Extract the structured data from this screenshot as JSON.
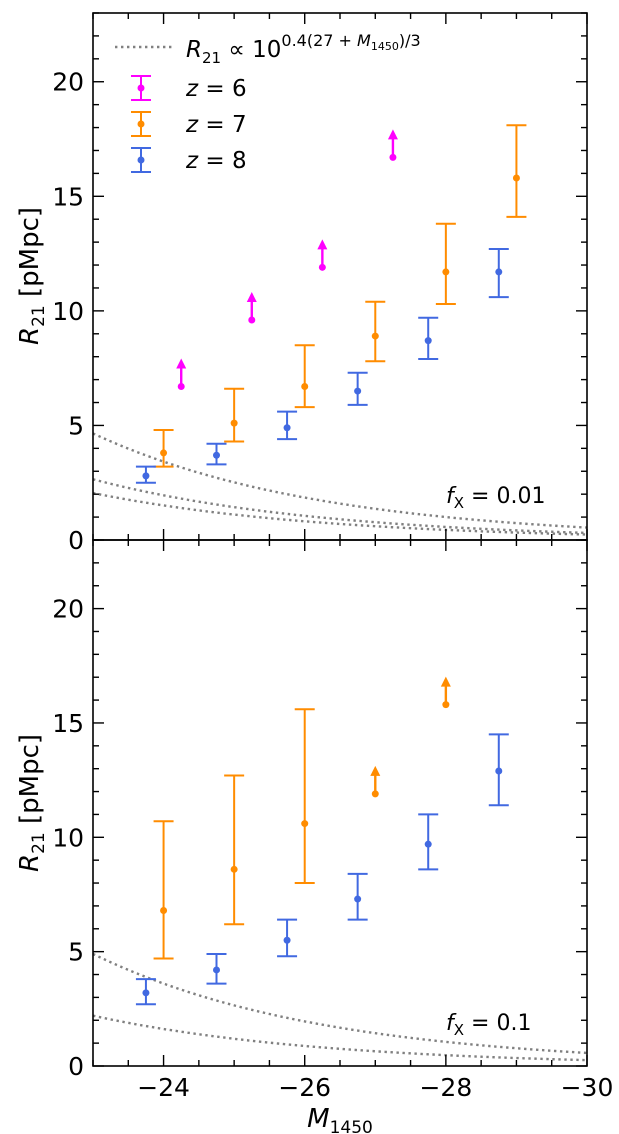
{
  "chart_data": [
    {
      "type": "scatter",
      "panel": "top",
      "xlabel": "",
      "ylabel": "R21 [pMpc]",
      "xlim": [
        -23,
        -30
      ],
      "ylim": [
        0,
        23
      ],
      "x_ticks": [
        -24,
        -26,
        -28,
        -30
      ],
      "y_ticks": [
        0,
        5,
        10,
        15,
        20
      ],
      "annotation": "f_X = 0.01",
      "legend": {
        "placement": "top-left",
        "curve_label": "R21 ∝ 10^{0.4(27 + M1450)/3}",
        "entries": [
          "z = 6",
          "z = 7",
          "z = 8"
        ]
      },
      "series": [
        {
          "name": "z = 6",
          "color": "#ff00ff",
          "marker": "lower-limit",
          "points": [
            {
              "x": -24.25,
              "y": 6.7
            },
            {
              "x": -25.25,
              "y": 9.6
            },
            {
              "x": -26.25,
              "y": 11.9
            },
            {
              "x": -27.25,
              "y": 16.7
            }
          ]
        },
        {
          "name": "z = 7",
          "color": "#ff8c00",
          "marker": "errorbar",
          "points": [
            {
              "x": -24.0,
              "y": 3.8,
              "ylo": 3.2,
              "yhi": 4.8
            },
            {
              "x": -25.0,
              "y": 5.1,
              "ylo": 4.3,
              "yhi": 6.6
            },
            {
              "x": -26.0,
              "y": 6.7,
              "ylo": 5.8,
              "yhi": 8.5
            },
            {
              "x": -27.0,
              "y": 8.9,
              "ylo": 7.8,
              "yhi": 10.4
            },
            {
              "x": -28.0,
              "y": 11.7,
              "ylo": 10.3,
              "yhi": 13.8
            },
            {
              "x": -29.0,
              "y": 15.8,
              "ylo": 14.1,
              "yhi": 18.1
            }
          ]
        },
        {
          "name": "z = 8",
          "color": "#4169e1",
          "marker": "errorbar",
          "points": [
            {
              "x": -23.75,
              "y": 2.8,
              "ylo": 2.5,
              "yhi": 3.2
            },
            {
              "x": -24.75,
              "y": 3.7,
              "ylo": 3.3,
              "yhi": 4.2
            },
            {
              "x": -25.75,
              "y": 4.9,
              "ylo": 4.4,
              "yhi": 5.6
            },
            {
              "x": -26.75,
              "y": 6.5,
              "ylo": 5.9,
              "yhi": 7.3
            },
            {
              "x": -27.75,
              "y": 8.7,
              "ylo": 7.9,
              "yhi": 9.7
            },
            {
              "x": -28.75,
              "y": 11.7,
              "ylo": 10.6,
              "yhi": 12.7
            }
          ]
        }
      ],
      "curves": [
        {
          "anchor_x": -23,
          "anchor_y": 4.65
        },
        {
          "anchor_x": -23,
          "anchor_y": 2.65
        },
        {
          "anchor_x": -23,
          "anchor_y": 2.05
        }
      ]
    },
    {
      "type": "scatter",
      "panel": "bottom",
      "xlabel": "M1450",
      "ylabel": "R21 [pMpc]",
      "xlim": [
        -23,
        -30
      ],
      "ylim": [
        0,
        23
      ],
      "x_ticks": [
        -24,
        -26,
        -28,
        -30
      ],
      "y_ticks": [
        0,
        5,
        10,
        15,
        20
      ],
      "annotation": "f_X = 0.1",
      "series": [
        {
          "name": "z = 7",
          "color": "#ff8c00",
          "marker": "errorbar",
          "points": [
            {
              "x": -24.0,
              "y": 6.8,
              "ylo": 4.7,
              "yhi": 10.7
            },
            {
              "x": -25.0,
              "y": 8.6,
              "ylo": 6.2,
              "yhi": 12.7
            },
            {
              "x": -26.0,
              "y": 10.6,
              "ylo": 8.0,
              "yhi": 15.6
            }
          ]
        },
        {
          "name": "z = 7",
          "color": "#ff8c00",
          "marker": "lower-limit",
          "points": [
            {
              "x": -27.0,
              "y": 11.9
            },
            {
              "x": -28.0,
              "y": 15.8
            }
          ]
        },
        {
          "name": "z = 8",
          "color": "#4169e1",
          "marker": "errorbar",
          "points": [
            {
              "x": -23.75,
              "y": 3.2,
              "ylo": 2.7,
              "yhi": 3.8
            },
            {
              "x": -24.75,
              "y": 4.2,
              "ylo": 3.6,
              "yhi": 4.9
            },
            {
              "x": -25.75,
              "y": 5.5,
              "ylo": 4.8,
              "yhi": 6.4
            },
            {
              "x": -26.75,
              "y": 7.3,
              "ylo": 6.4,
              "yhi": 8.4
            },
            {
              "x": -27.75,
              "y": 9.7,
              "ylo": 8.6,
              "yhi": 11.0
            },
            {
              "x": -28.75,
              "y": 12.9,
              "ylo": 11.4,
              "yhi": 14.5
            }
          ]
        }
      ],
      "curves": [
        {
          "anchor_x": -23,
          "anchor_y": 4.9
        },
        {
          "anchor_x": -23,
          "anchor_y": 2.2
        }
      ]
    }
  ]
}
